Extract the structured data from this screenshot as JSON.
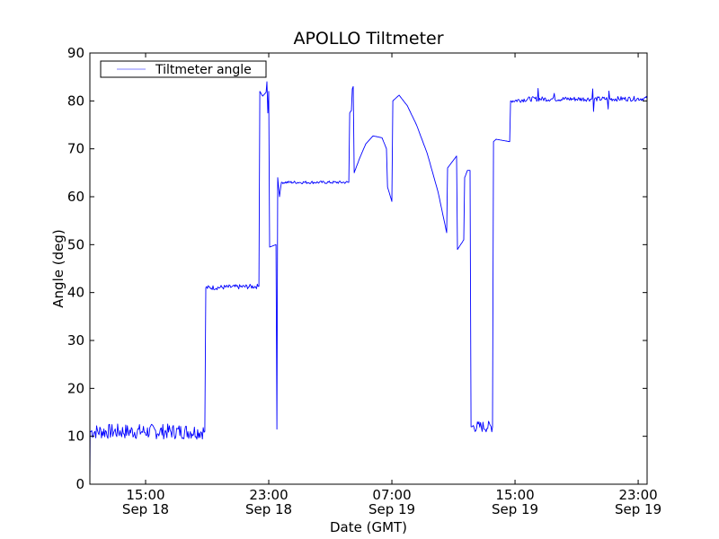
{
  "chart_data": {
    "type": "line",
    "title": "APOLLO Tiltmeter",
    "xlabel": "Date (GMT)",
    "ylabel": "Angle (deg)",
    "x_units": "hours since Sep 18 00:00 GMT",
    "xlim": [
      11.38,
      47.58
    ],
    "ylim": [
      0,
      90
    ],
    "yticks": [
      0,
      10,
      20,
      30,
      40,
      50,
      60,
      70,
      80,
      90
    ],
    "xticks": [
      {
        "value": 15,
        "time": "15:00",
        "date": "Sep 18"
      },
      {
        "value": 23,
        "time": "23:00",
        "date": "Sep 18"
      },
      {
        "value": 31,
        "time": "07:00",
        "date": "Sep 19"
      },
      {
        "value": 39,
        "time": "15:00",
        "date": "Sep 19"
      },
      {
        "value": 47,
        "time": "23:00",
        "date": "Sep 19"
      }
    ],
    "grid": false,
    "legend": {
      "placement": "top-left",
      "entries": [
        "Tiltmeter angle"
      ]
    },
    "series": [
      {
        "name": "Tiltmeter angle",
        "color": "#0000ff",
        "points": [
          [
            11.38,
            0
          ],
          [
            11.4,
            11
          ],
          [
            18.85,
            11
          ],
          [
            18.91,
            41
          ],
          [
            22.36,
            41.3
          ],
          [
            22.42,
            82
          ],
          [
            22.6,
            81
          ],
          [
            22.83,
            81.8
          ],
          [
            22.88,
            84
          ],
          [
            22.94,
            77.5
          ],
          [
            23.0,
            82
          ],
          [
            23.06,
            49.5
          ],
          [
            23.47,
            50
          ],
          [
            23.53,
            11.5
          ],
          [
            23.58,
            64
          ],
          [
            23.7,
            60
          ],
          [
            23.82,
            63
          ],
          [
            28.2,
            63
          ],
          [
            28.26,
            77.5
          ],
          [
            28.37,
            78
          ],
          [
            28.43,
            82.5
          ],
          [
            28.49,
            83
          ],
          [
            28.55,
            65
          ],
          [
            28.9,
            68
          ],
          [
            29.3,
            71
          ],
          [
            29.77,
            72.7
          ],
          [
            30.36,
            72.3
          ],
          [
            30.65,
            70
          ],
          [
            30.72,
            62
          ],
          [
            31.0,
            59
          ],
          [
            31.06,
            80
          ],
          [
            31.47,
            81.2
          ],
          [
            32.0,
            79
          ],
          [
            32.6,
            75
          ],
          [
            33.3,
            69
          ],
          [
            34.0,
            61
          ],
          [
            34.56,
            52.5
          ],
          [
            34.62,
            66
          ],
          [
            35.2,
            68.5
          ],
          [
            35.26,
            49
          ],
          [
            35.67,
            51
          ],
          [
            35.73,
            64
          ],
          [
            35.91,
            65.5
          ],
          [
            36.08,
            65.5
          ],
          [
            36.14,
            12
          ],
          [
            37.54,
            12
          ],
          [
            37.6,
            71.5
          ],
          [
            37.77,
            72
          ],
          [
            38.65,
            71.5
          ],
          [
            38.71,
            80
          ],
          [
            40.0,
            80.4
          ],
          [
            40.46,
            80.4
          ],
          [
            40.5,
            82.5
          ],
          [
            40.55,
            80.4
          ],
          [
            41.5,
            80.4
          ],
          [
            41.55,
            82
          ],
          [
            41.6,
            80.4
          ],
          [
            44.0,
            80.4
          ],
          [
            44.05,
            83
          ],
          [
            44.1,
            77.5
          ],
          [
            44.15,
            80.4
          ],
          [
            45.0,
            80.4
          ],
          [
            45.05,
            78
          ],
          [
            45.1,
            82
          ],
          [
            45.15,
            80.4
          ],
          [
            47.58,
            80.5
          ]
        ],
        "noisy_ranges": [
          [
            11.45,
            18.8,
            1.6
          ],
          [
            18.95,
            22.3,
            0.5
          ],
          [
            23.85,
            28.15,
            0.3
          ],
          [
            36.2,
            37.5,
            1.2
          ],
          [
            38.75,
            47.55,
            0.5
          ]
        ]
      }
    ]
  }
}
